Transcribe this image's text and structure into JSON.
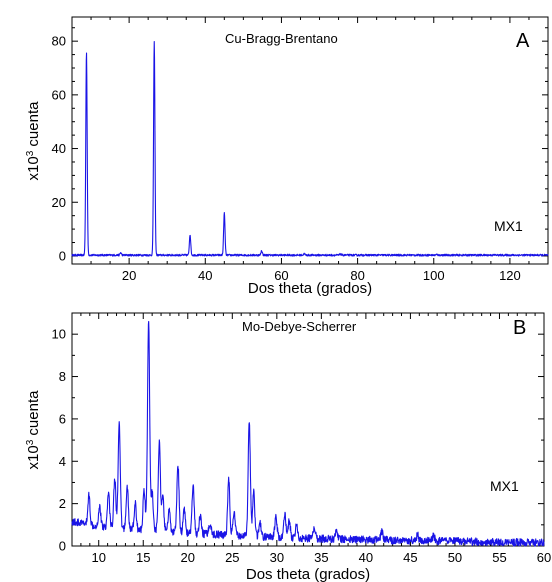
{
  "chart_data": [
    {
      "type": "line",
      "panel_letter": "A",
      "title": "Cu-Bragg-Brentano",
      "sample_label": "MX1",
      "xlabel": "Dos theta (grados)",
      "ylabel_prefix": "x10",
      "ylabel_exp": "3",
      "ylabel_suffix": " cuenta",
      "xlim": [
        5,
        130
      ],
      "ylim": [
        -3,
        89
      ],
      "xticks": [
        20,
        40,
        60,
        80,
        100,
        120
      ],
      "xminor_step": 5,
      "yticks": [
        0,
        20,
        40,
        60,
        80
      ],
      "yminor_step": 5,
      "line_color": "#1a14e6",
      "baseline": 0.3,
      "noise": 0.35,
      "series": [
        {
          "x": [
            8.8,
            17.8,
            26.6,
            36.0,
            45.0,
            54.8,
            66.0,
            75.5,
            100.8,
            116.0
          ],
          "y": [
            76.0,
            1.2,
            79.5,
            8.0,
            16.0,
            2.0,
            0.8,
            0.7,
            0.5,
            0.4
          ]
        }
      ]
    },
    {
      "type": "line",
      "panel_letter": "B",
      "title": "Mo-Debye-Scherrer",
      "sample_label": "MX1",
      "xlabel": "Dos theta (grados)",
      "ylabel_prefix": "x10",
      "ylabel_exp": "3",
      "ylabel_suffix": " cuenta",
      "xlim": [
        7,
        60
      ],
      "ylim": [
        0,
        11
      ],
      "xticks": [
        10,
        15,
        20,
        25,
        30,
        35,
        40,
        45,
        50,
        55,
        60
      ],
      "xminor_step": 1,
      "yticks": [
        0,
        2,
        4,
        6,
        8,
        10
      ],
      "yminor_step": 1,
      "line_color": "#1a14e6",
      "baseline_points": [
        [
          7,
          1.15
        ],
        [
          9,
          1.0
        ],
        [
          12,
          0.85
        ],
        [
          16,
          0.7
        ],
        [
          20,
          0.6
        ],
        [
          25,
          0.5
        ],
        [
          30,
          0.4
        ],
        [
          40,
          0.3
        ],
        [
          50,
          0.22
        ],
        [
          60,
          0.15
        ]
      ],
      "noise": 0.18,
      "series": [
        {
          "x": [
            8.9,
            10.1,
            11.1,
            11.8,
            12.3,
            13.2,
            14.1,
            15.1,
            15.6,
            16.0,
            16.8,
            17.2,
            17.9,
            18.9,
            19.6,
            20.6,
            21.4,
            22.5,
            24.6,
            25.2,
            26.9,
            27.4,
            28.1,
            29.9,
            30.9,
            31.4,
            32.2,
            34.2,
            36.7,
            41.8,
            45.8,
            47.6
          ],
          "y": [
            2.4,
            1.9,
            2.5,
            3.2,
            5.7,
            2.8,
            2.0,
            2.7,
            10.6,
            2.5,
            4.9,
            2.3,
            1.7,
            3.8,
            1.8,
            2.8,
            1.4,
            1.1,
            3.1,
            1.6,
            6.0,
            2.6,
            1.1,
            1.4,
            1.55,
            1.2,
            1.0,
            0.9,
            0.8,
            0.65,
            0.5,
            0.45
          ]
        }
      ]
    }
  ]
}
